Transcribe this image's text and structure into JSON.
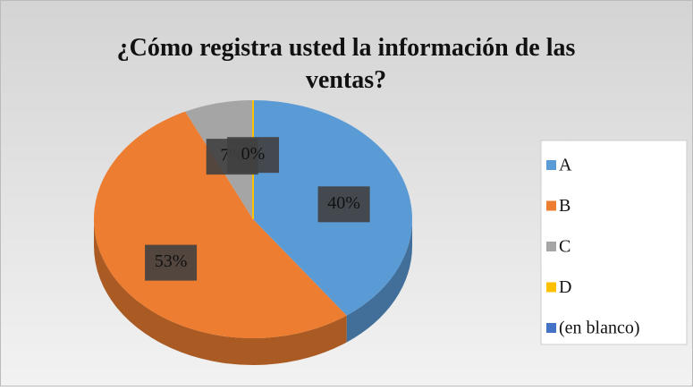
{
  "chart_data": {
    "type": "pie",
    "title": "¿Cómo registra usted la información de las ventas?",
    "categories": [
      "A",
      "B",
      "C",
      "D",
      "(en blanco)"
    ],
    "values": [
      40,
      53,
      7,
      0,
      null
    ],
    "value_labels": [
      "40%",
      "53%",
      "7%",
      "0%",
      null
    ],
    "colors": [
      "#5b9bd5",
      "#ed7d31",
      "#a5a5a5",
      "#ffc000",
      "#4472c4"
    ],
    "legend": "right",
    "style": "3d"
  }
}
